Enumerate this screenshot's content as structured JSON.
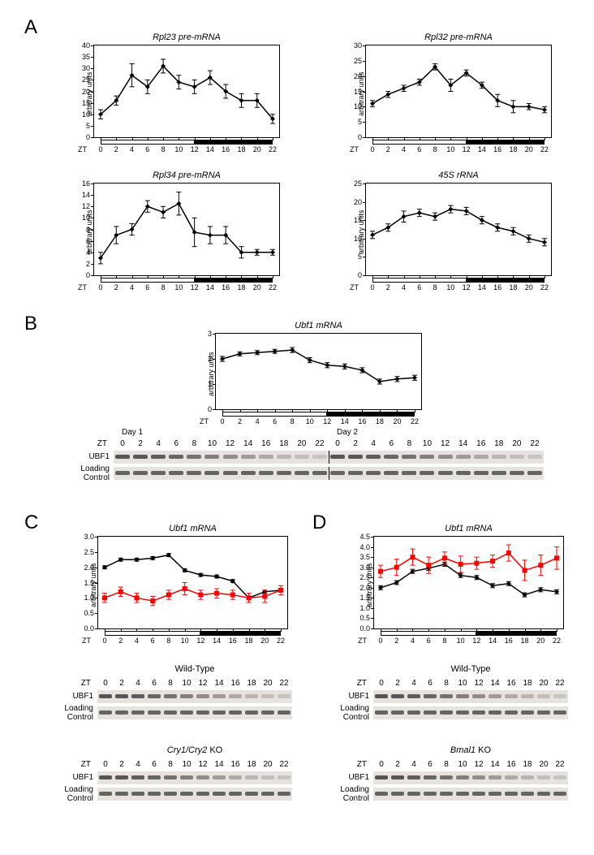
{
  "panels": {
    "A": "A",
    "B": "B",
    "C": "C",
    "D": "D"
  },
  "common": {
    "ylabel": "arbitrary units",
    "zt": "ZT",
    "xticks": [
      0,
      2,
      4,
      6,
      8,
      10,
      12,
      14,
      16,
      18,
      20,
      22
    ],
    "light_end": 12,
    "colors": {
      "wt": "#000000",
      "ko": "#ff0000",
      "bg": "#ffffff",
      "box": "#000000"
    },
    "marker": "diamond",
    "marker_ko": "square",
    "line_width": 1.5,
    "marker_size": 6,
    "tick_fontsize": 9,
    "title_fontsize": 11,
    "label_fontsize": 9
  },
  "A": {
    "charts": [
      {
        "title": "Rpl23 pre-mRNA",
        "title_style": "italic-partial",
        "ylim": [
          0,
          40
        ],
        "ystep": 5,
        "y": [
          10,
          16,
          27,
          22,
          31,
          24,
          22,
          26,
          20,
          16,
          16,
          8
        ],
        "err": [
          2,
          2,
          5,
          3,
          3,
          3,
          3,
          3,
          3,
          3,
          3,
          2
        ]
      },
      {
        "title": "Rpl32 pre-mRNA",
        "title_style": "italic-partial",
        "ylim": [
          0,
          30
        ],
        "ystep": 5,
        "y": [
          11,
          14,
          16,
          18,
          23,
          17,
          21,
          17,
          12,
          10,
          10,
          9
        ],
        "err": [
          1,
          1,
          1,
          1,
          1,
          2,
          1,
          1,
          2,
          2,
          1,
          1
        ]
      },
      {
        "title": "Rpl34 pre-mRNA",
        "title_style": "italic-partial",
        "ylim": [
          0,
          16
        ],
        "ystep": 2,
        "y": [
          3,
          7,
          8,
          12,
          11,
          12.5,
          7.5,
          7,
          7,
          4,
          4,
          4
        ],
        "err": [
          1,
          1.5,
          1,
          1,
          1,
          2,
          2.5,
          1.5,
          1.5,
          1,
          0.5,
          0.5
        ]
      },
      {
        "title": "45S rRNA",
        "title_style": "italic-partial",
        "ylim": [
          0,
          25
        ],
        "ystep": 5,
        "y": [
          11,
          13,
          16,
          17,
          16,
          18,
          17.5,
          15,
          13,
          12,
          10,
          9
        ],
        "err": [
          1,
          1,
          1.5,
          1,
          1,
          1,
          1,
          1,
          1,
          1,
          1,
          1
        ]
      }
    ]
  },
  "B": {
    "chart": {
      "title": "Ubf1 mRNA",
      "ylim": [
        0,
        3
      ],
      "ystep": 1,
      "y": [
        2.0,
        2.2,
        2.25,
        2.3,
        2.35,
        1.95,
        1.75,
        1.7,
        1.55,
        1.1,
        1.2,
        1.25
      ],
      "err": [
        0.1,
        0.08,
        0.08,
        0.08,
        0.1,
        0.1,
        0.1,
        0.1,
        0.1,
        0.1,
        0.1,
        0.1
      ]
    },
    "blot": {
      "days": [
        "Day 1",
        "Day 2"
      ],
      "zt_vals": [
        0,
        2,
        4,
        6,
        8,
        10,
        12,
        14,
        16,
        18,
        20,
        22,
        0,
        2,
        4,
        6,
        8,
        10,
        12,
        14,
        16,
        18,
        20,
        22
      ],
      "rows": [
        "UBF1",
        "Loading\nControl"
      ]
    }
  },
  "C": {
    "chart": {
      "title": "Ubf1 mRNA",
      "ylim": [
        0,
        3.0
      ],
      "yticks": [
        0,
        0.5,
        1.0,
        1.5,
        2.0,
        2.5,
        3.0
      ],
      "wt": [
        2.0,
        2.25,
        2.25,
        2.3,
        2.4,
        1.9,
        1.75,
        1.7,
        1.55,
        1.0,
        1.2,
        1.25
      ],
      "ko": [
        1.0,
        1.2,
        1.0,
        0.9,
        1.1,
        1.3,
        1.1,
        1.15,
        1.1,
        1.0,
        1.05,
        1.25
      ],
      "err_wt": [
        0.05,
        0.05,
        0.05,
        0.05,
        0.05,
        0.05,
        0.05,
        0.05,
        0.05,
        0.05,
        0.05,
        0.05
      ],
      "err_ko": [
        0.15,
        0.15,
        0.15,
        0.15,
        0.15,
        0.2,
        0.15,
        0.15,
        0.15,
        0.15,
        0.2,
        0.15
      ]
    },
    "blots": [
      {
        "genotype": "Wild-Type",
        "rows": [
          "UBF1",
          "Loading\nControl"
        ]
      },
      {
        "genotype": "Cry1/Cry2 KO",
        "genotype_italic_part": "Cry1/Cry2",
        "rows": [
          "UBF1",
          "Loading\nControl"
        ]
      }
    ],
    "zt_vals": [
      0,
      2,
      4,
      6,
      8,
      10,
      12,
      14,
      16,
      18,
      20,
      22
    ]
  },
  "D": {
    "chart": {
      "title": "Ubf1 mRNA",
      "ylim": [
        0,
        4.5
      ],
      "yticks": [
        0,
        0.5,
        1.0,
        1.5,
        2.0,
        2.5,
        3.0,
        3.5,
        4.0,
        4.5
      ],
      "wt": [
        2.0,
        2.25,
        2.8,
        2.95,
        3.15,
        2.6,
        2.5,
        2.1,
        2.2,
        1.65,
        1.9,
        1.8
      ],
      "ko": [
        2.8,
        3.0,
        3.5,
        3.1,
        3.45,
        3.15,
        3.2,
        3.3,
        3.7,
        2.85,
        3.1,
        3.45
      ],
      "err_wt": [
        0.1,
        0.1,
        0.1,
        0.1,
        0.1,
        0.1,
        0.1,
        0.1,
        0.1,
        0.1,
        0.1,
        0.1
      ],
      "err_ko": [
        0.3,
        0.4,
        0.4,
        0.4,
        0.3,
        0.4,
        0.3,
        0.3,
        0.4,
        0.5,
        0.5,
        0.55
      ]
    },
    "blots": [
      {
        "genotype": "Wild-Type",
        "rows": [
          "UBF1",
          "Loading\nControl"
        ]
      },
      {
        "genotype": "Bmal1 KO",
        "genotype_italic_part": "Bmal1",
        "rows": [
          "UBF1",
          "Loading\nControl"
        ]
      }
    ],
    "zt_vals": [
      0,
      2,
      4,
      6,
      8,
      10,
      12,
      14,
      16,
      18,
      20,
      22
    ]
  }
}
